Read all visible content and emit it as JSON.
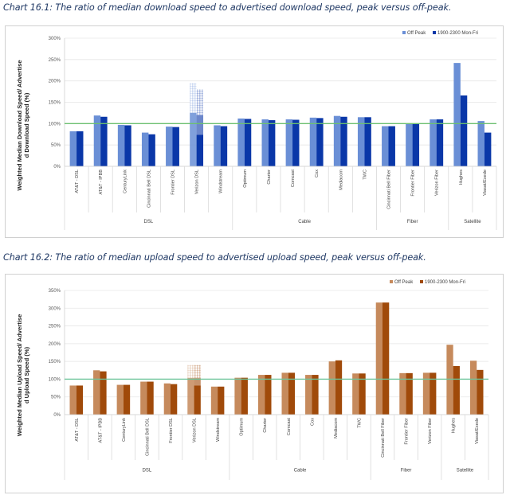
{
  "captions": {
    "chart1": "Chart 16.1: The ratio of median download speed to advertised download speed, peak versus off-peak.",
    "chart2": "Chart 16.2: The ratio of median upload speed to advertised upload speed, peak versus off-peak."
  },
  "chart_data": [
    {
      "type": "bar",
      "title": "Chart 16.1: The ratio of median download speed to advertised download speed, peak versus off-peak.",
      "ylabel": "Weighted Median Download Speed/ Advertised Download Speed (%)",
      "xlabel": "",
      "ylim": [
        0,
        300
      ],
      "yticks": [
        0,
        50,
        100,
        150,
        200,
        250,
        300
      ],
      "ytick_labels": [
        "0%",
        "50%",
        "100%",
        "150%",
        "200%",
        "250%",
        "300%"
      ],
      "reference_line": 100,
      "grid": true,
      "legend": "top-right",
      "colors": {
        "off_peak": "#6a8fd6",
        "peak": "#0a37a8",
        "reference": "#6cc070"
      },
      "categories": [
        "AT&T - DSL",
        "AT&T - IPBB",
        "CenturyLink",
        "Cincinnati Bell DSL",
        "Frontier DSL",
        "Verizon DSL",
        "Windstream",
        "Optimum",
        "Charter",
        "Comcast",
        "Cox",
        "Mediacom",
        "TWC",
        "Cincinnati Bell Fiber",
        "Frontier Fiber",
        "Verizon Fiber",
        "Hughes",
        "Viasat/Exede"
      ],
      "groups": [
        {
          "name": "DSL",
          "count": 7
        },
        {
          "name": "Cable",
          "count": 6
        },
        {
          "name": "Fiber",
          "count": 3
        },
        {
          "name": "Satellite",
          "count": 2
        }
      ],
      "series": [
        {
          "name": "Off Peak",
          "values": [
            82,
            119,
            97,
            79,
            93,
            125,
            96,
            112,
            110,
            110,
            114,
            118,
            115,
            94,
            100,
            110,
            242,
            106
          ]
        },
        {
          "name": "1900-2300 Mon-Fri",
          "values": [
            82,
            116,
            96,
            75,
            92,
            120,
            94,
            111,
            108,
            109,
            113,
            116,
            115,
            94,
            100,
            110,
            166,
            79
          ]
        }
      ],
      "faded_overlay": {
        "category": "Verizon DSL",
        "off_peak_top": 195,
        "peak_top": 180,
        "peak_solid": 74
      }
    },
    {
      "type": "bar",
      "title": "Chart 16.2: The ratio of median upload speed to advertised upload speed, peak versus off-peak.",
      "ylabel": "Weighted Median Upload Speed/ Advertised Upload Speed (%)",
      "xlabel": "",
      "ylim": [
        0,
        350
      ],
      "yticks": [
        0,
        50,
        100,
        150,
        200,
        250,
        300,
        350
      ],
      "ytick_labels": [
        "0%",
        "50%",
        "100%",
        "150%",
        "200%",
        "250%",
        "300%",
        "350%"
      ],
      "reference_line": 100,
      "grid": true,
      "legend": "top-right",
      "colors": {
        "off_peak": "#c68a5c",
        "peak": "#a04a0a",
        "reference": "#6cc49a"
      },
      "categories": [
        "AT&T - DSL",
        "AT&T - IPBB",
        "CenturyLink",
        "Cincinnati Bell DSL",
        "Frontier DSL",
        "Verizon DSL",
        "Windstream",
        "Optimum",
        "Charter",
        "Comcast",
        "Cox",
        "Mediacom",
        "TWC",
        "Cincinnati Bell Fiber",
        "Frontier Fiber",
        "Verizon Fiber",
        "Hughes",
        "Viasat/Exede"
      ],
      "groups": [
        {
          "name": "DSL",
          "count": 7
        },
        {
          "name": "Cable",
          "count": 6
        },
        {
          "name": "Fiber",
          "count": 3
        },
        {
          "name": "Satellite",
          "count": 2
        }
      ],
      "series": [
        {
          "name": "Off Peak",
          "values": [
            82,
            125,
            84,
            93,
            88,
            103,
            79,
            104,
            112,
            118,
            112,
            150,
            116,
            316,
            117,
            118,
            197,
            152
          ]
        },
        {
          "name": "1900-2300 Mon-Fri",
          "values": [
            82,
            122,
            84,
            93,
            86,
            103,
            79,
            104,
            112,
            118,
            112,
            153,
            116,
            316,
            117,
            118,
            137,
            126
          ]
        }
      ],
      "faded_overlay": {
        "category": "Verizon DSL",
        "off_peak_top": 140,
        "peak_top": 140,
        "peak_solid": 82
      }
    }
  ]
}
